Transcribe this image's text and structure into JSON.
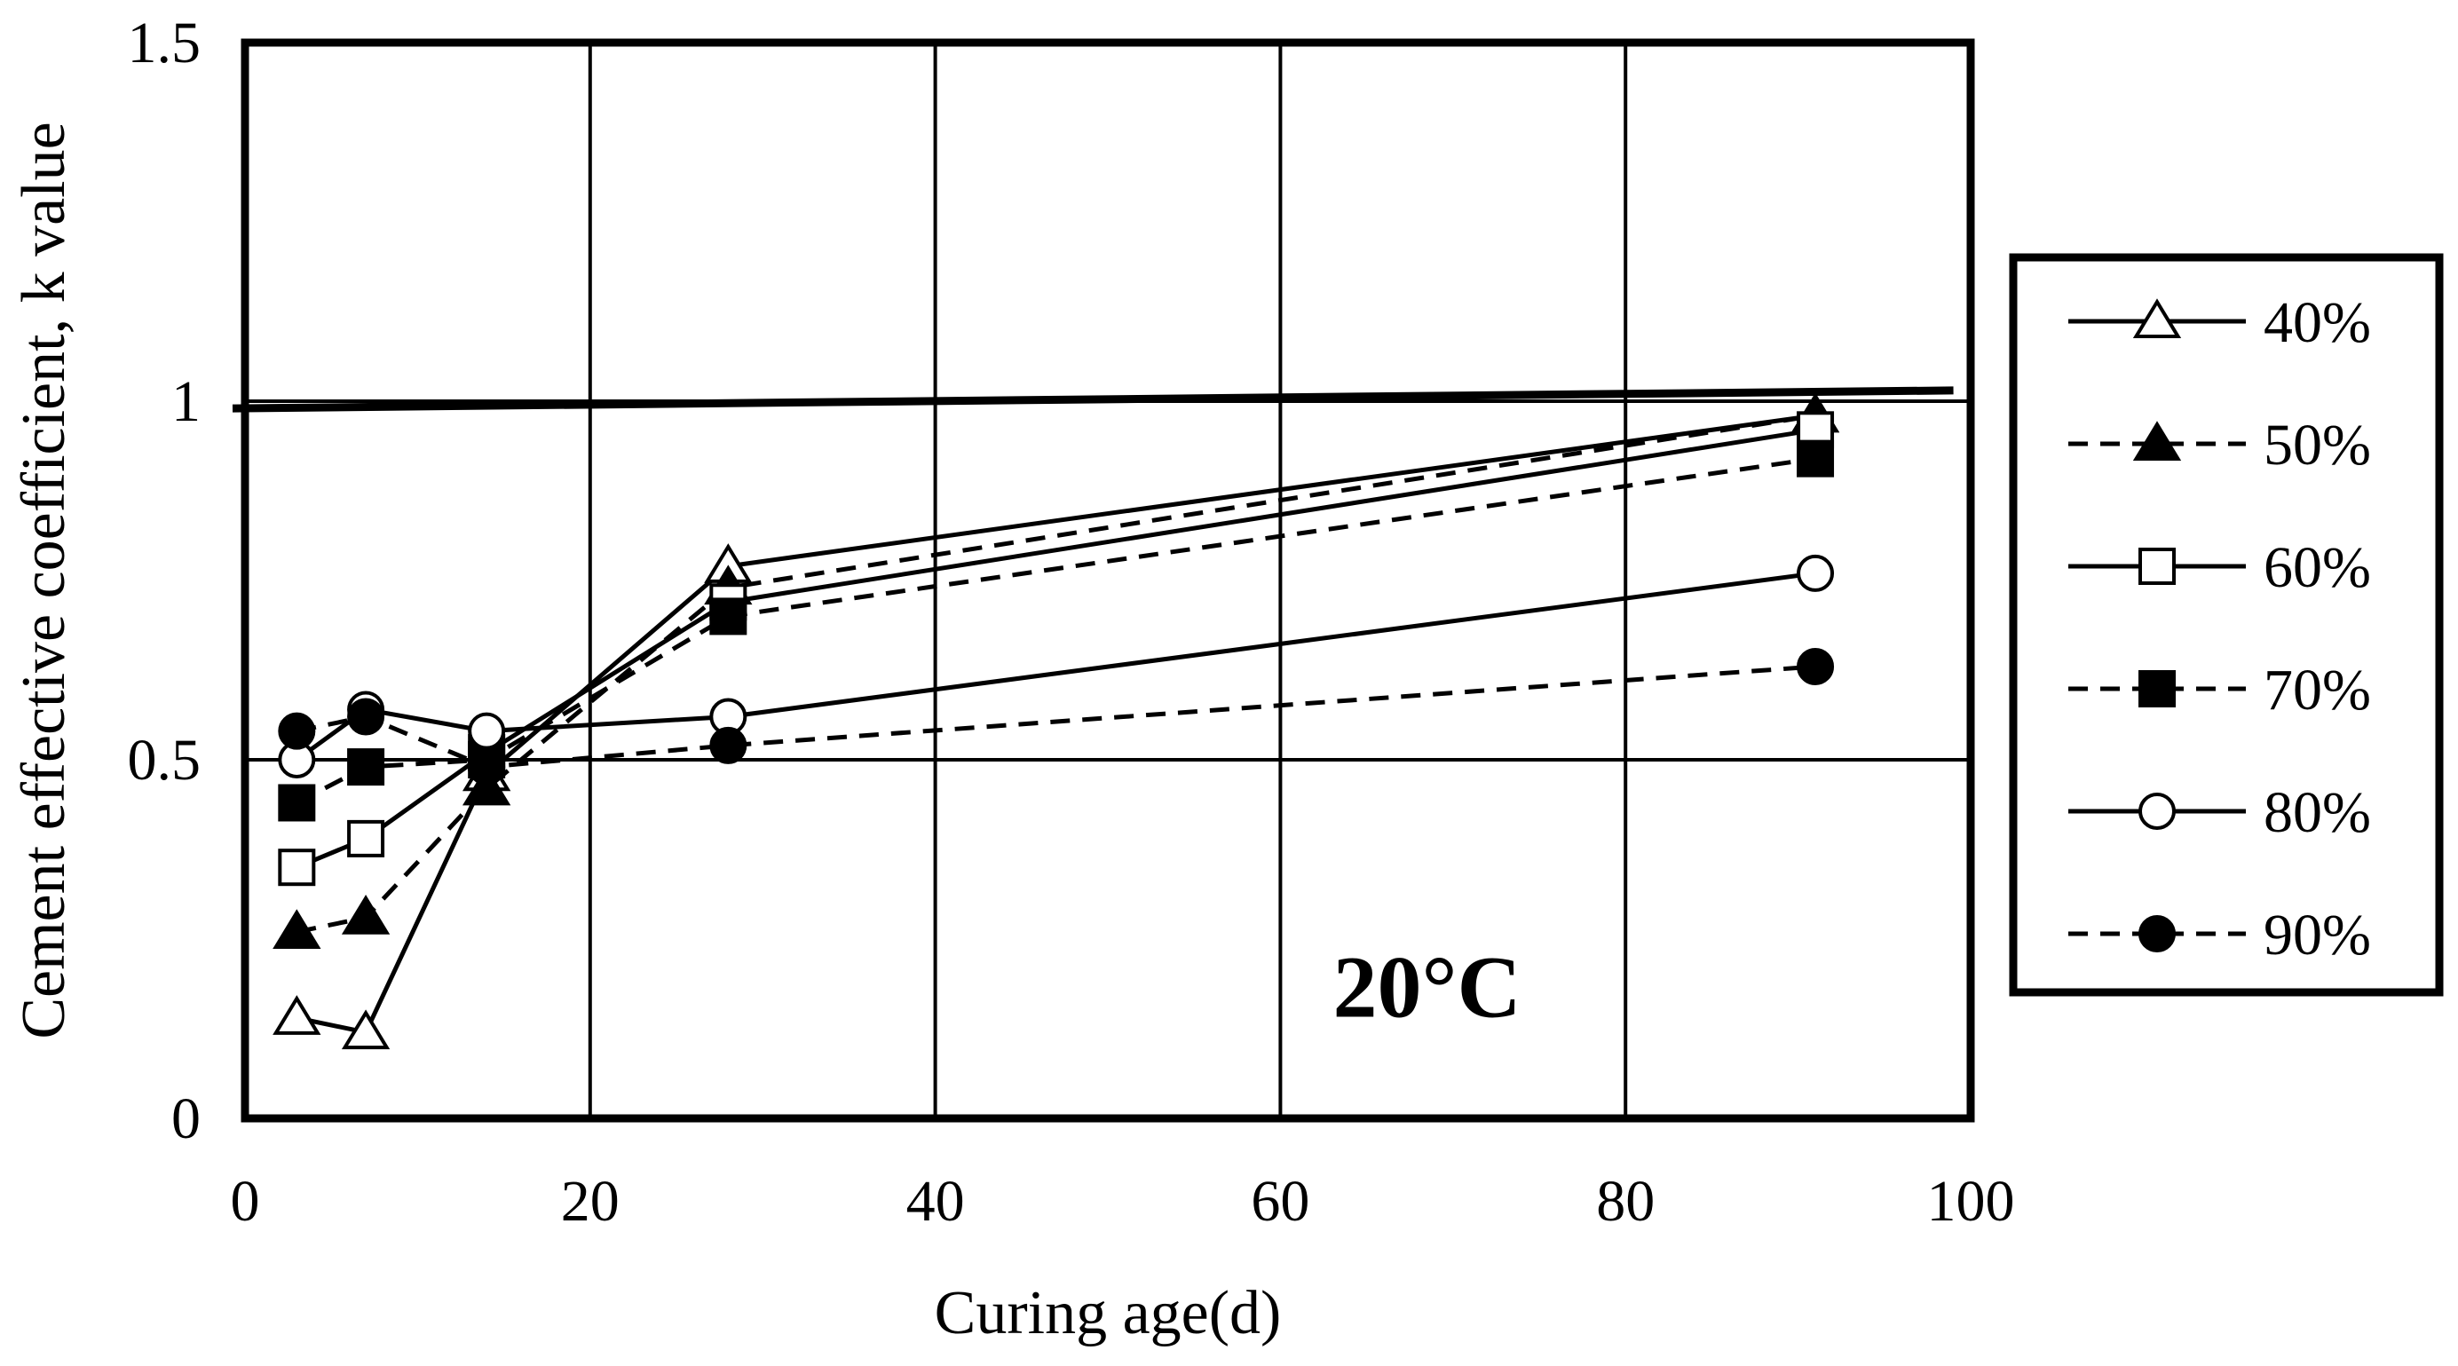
{
  "chart_data": {
    "type": "line",
    "title": "",
    "xlabel": "Curing age(d)",
    "ylabel": "Cement effective coefficient, k value",
    "xlim": [
      0,
      100
    ],
    "ylim": [
      0,
      1.5
    ],
    "x_ticks": [
      0,
      20,
      40,
      60,
      80,
      100
    ],
    "y_ticks": [
      0,
      0.5,
      1,
      1.5
    ],
    "x_tick_labels": [
      "0",
      "20",
      "40",
      "60",
      "80",
      "100"
    ],
    "y_tick_labels": [
      "0",
      "0.5",
      "1",
      "1.5"
    ],
    "grid": true,
    "reference_line": {
      "x": [
        0,
        99
      ],
      "y": [
        0.99,
        1.015
      ]
    },
    "annotation": "20°C",
    "legend_position": "right",
    "x": [
      3,
      7,
      14,
      28,
      91
    ],
    "series": [
      {
        "name": "40%",
        "values": [
          0.14,
          0.12,
          0.48,
          0.77,
          0.98
        ],
        "marker": "triangle",
        "filled": false,
        "dash": "solid"
      },
      {
        "name": "50%",
        "values": [
          0.26,
          0.28,
          0.46,
          0.74,
          0.98
        ],
        "marker": "triangle",
        "filled": true,
        "dash": "dashed"
      },
      {
        "name": "60%",
        "values": [
          0.35,
          0.39,
          0.51,
          0.72,
          0.96
        ],
        "marker": "square",
        "filled": false,
        "dash": "solid"
      },
      {
        "name": "70%",
        "values": [
          0.44,
          0.49,
          0.5,
          0.7,
          0.92
        ],
        "marker": "square",
        "filled": true,
        "dash": "dashed"
      },
      {
        "name": "80%",
        "values": [
          0.5,
          0.57,
          0.54,
          0.56,
          0.76
        ],
        "marker": "circle",
        "filled": false,
        "dash": "solid"
      },
      {
        "name": "90%",
        "values": [
          0.54,
          0.56,
          0.49,
          0.52,
          0.63
        ],
        "marker": "circle",
        "filled": true,
        "dash": "dashed"
      }
    ]
  }
}
